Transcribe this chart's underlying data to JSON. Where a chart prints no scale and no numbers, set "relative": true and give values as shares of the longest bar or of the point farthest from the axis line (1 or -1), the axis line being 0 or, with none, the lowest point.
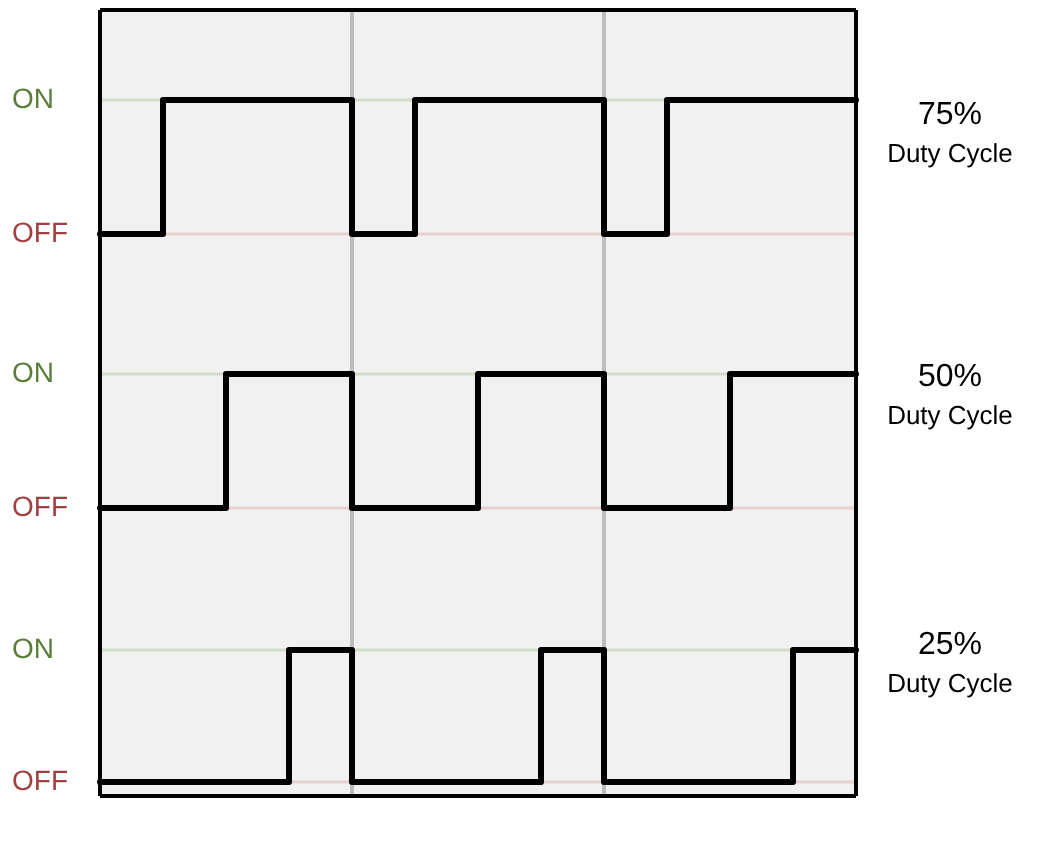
{
  "chart_data": [
    {
      "type": "step",
      "relative": true,
      "categories": [
        null,
        null,
        null,
        null,
        null,
        null,
        null,
        null,
        null,
        null,
        null,
        null,
        null
      ],
      "series": [
        {
          "color": "#000000",
          "values": [
            0,
            1,
            1,
            1,
            0,
            1,
            1,
            1,
            0,
            1,
            1,
            1,
            1
          ]
        }
      ],
      "grid": "x",
      "legend": false,
      "marker": "none",
      "line_style": "solid",
      "ref_lines": [
        {
          "axis": "y",
          "value": 1,
          "label": "ON",
          "color": "#d3dcc8"
        },
        {
          "axis": "y",
          "value": 0,
          "label": "OFF",
          "color": "#e8cfcf"
        }
      ],
      "annotations": [
        "75%",
        "Duty Cycle"
      ]
    },
    {
      "type": "step",
      "relative": true,
      "categories": [
        null,
        null,
        null,
        null,
        null,
        null,
        null,
        null,
        null,
        null,
        null,
        null,
        null
      ],
      "series": [
        {
          "color": "#000000",
          "values": [
            0,
            0,
            1,
            1,
            0,
            0,
            1,
            1,
            0,
            0,
            1,
            1,
            1
          ]
        }
      ],
      "grid": "x",
      "legend": false,
      "marker": "none",
      "line_style": "solid",
      "ref_lines": [
        {
          "axis": "y",
          "value": 1,
          "label": "ON",
          "color": "#d3dcc8"
        },
        {
          "axis": "y",
          "value": 0,
          "label": "OFF",
          "color": "#e8cfcf"
        }
      ],
      "annotations": [
        "50%",
        "Duty Cycle"
      ]
    },
    {
      "type": "step",
      "relative": true,
      "categories": [
        null,
        null,
        null,
        null,
        null,
        null,
        null,
        null,
        null,
        null,
        null,
        null,
        null
      ],
      "series": [
        {
          "color": "#000000",
          "values": [
            0,
            0,
            0,
            1,
            0,
            0,
            0,
            1,
            0,
            0,
            0,
            1,
            1
          ]
        }
      ],
      "grid": "x",
      "legend": false,
      "marker": "none",
      "line_style": "solid",
      "ref_lines": [
        {
          "axis": "y",
          "value": 1,
          "label": "ON",
          "color": "#d3dcc8"
        },
        {
          "axis": "y",
          "value": 0,
          "label": "OFF",
          "color": "#e8cfcf"
        }
      ],
      "annotations": [
        "25%",
        "Duty Cycle"
      ]
    }
  ]
}
